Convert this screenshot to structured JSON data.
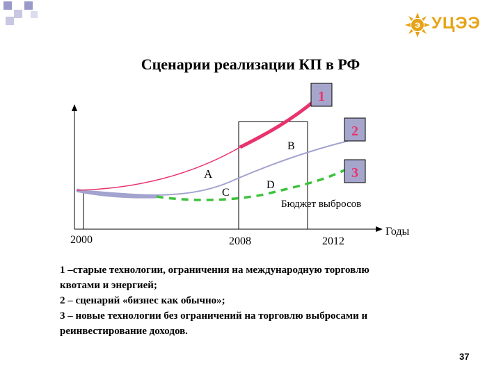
{
  "slide": {
    "title": "Сценарии реализации КП в РФ",
    "page_number": "37",
    "logo_text": "УЦЭЭ"
  },
  "colors": {
    "scenario_1": "#e8336d",
    "scenario_2": "#a3a3cf",
    "scenario_3": "#3cc23c",
    "badge_fill": "#a6a6cc",
    "badge_text": "#e8336d",
    "logo": "#e7a318",
    "corner_squares": "#8c8cc0"
  },
  "chart_data": {
    "type": "line",
    "x_ticks": [
      "2000",
      "2008",
      "2012"
    ],
    "x_axis_label": "Годы",
    "point_labels": {
      "A": "A",
      "B": "B",
      "C": "C",
      "D": "D"
    },
    "budget_label": "Бюджет выбросов",
    "series": [
      {
        "badge": "1",
        "style": "solid"
      },
      {
        "badge": "2",
        "style": "solid"
      },
      {
        "badge": "3",
        "style": "dashed"
      }
    ]
  },
  "caption": {
    "line1": "1 –старые технологии, ограничения на международную торговлю",
    "line2": "квотами и энергией;",
    "line3": "2 – сценарий «бизнес как обычно»;",
    "line4": "3 – новые технологии без ограничений на торговлю выбросами и",
    "line5": "реинвестирование доходов."
  }
}
